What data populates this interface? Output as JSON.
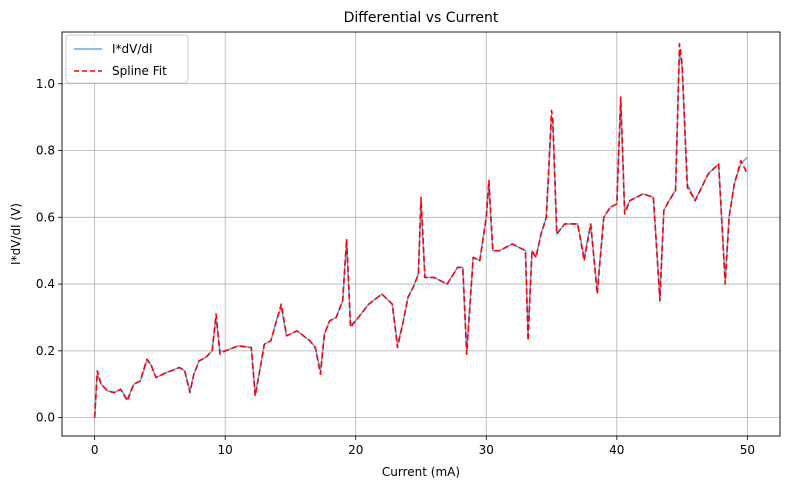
{
  "chart_data": {
    "type": "line",
    "title": "Differential vs Current",
    "xlabel": "Current (mA)",
    "ylabel": "I*dV/dI (V)",
    "xlim": [
      -2.5,
      52.5
    ],
    "ylim": [
      -0.055,
      1.155
    ],
    "xticks": [
      0,
      10,
      20,
      30,
      40,
      50
    ],
    "yticks": [
      0.0,
      0.2,
      0.4,
      0.6,
      0.8,
      1.0
    ],
    "xtick_labels": [
      "0",
      "10",
      "20",
      "30",
      "40",
      "50"
    ],
    "ytick_labels": [
      "0.0",
      "0.2",
      "0.4",
      "0.6",
      "0.8",
      "1.0"
    ],
    "grid": true,
    "legend_position": "top-left",
    "series": [
      {
        "name": "I*dV/dI",
        "color": "#6fa8dc",
        "style": "solid",
        "x": [
          0,
          0.2,
          0.5,
          1.0,
          1.5,
          2.0,
          2.5,
          3.0,
          3.5,
          4.0,
          4.3,
          4.7,
          5.5,
          6.5,
          6.9,
          7.3,
          7.6,
          8.0,
          8.5,
          9.0,
          9.3,
          9.6,
          10.0,
          11.0,
          12.0,
          12.3,
          12.6,
          13.0,
          13.5,
          14.0,
          14.3,
          14.7,
          15.5,
          16.5,
          16.9,
          17.3,
          17.6,
          18.0,
          18.5,
          19.0,
          19.3,
          19.6,
          20.0,
          21.0,
          22.0,
          22.8,
          23.2,
          23.6,
          24.0,
          24.4,
          24.8,
          25.0,
          25.3,
          26.0,
          27.0,
          27.8,
          28.2,
          28.5,
          29.0,
          29.5,
          30.0,
          30.2,
          30.5,
          31.0,
          32.0,
          33.0,
          33.2,
          33.5,
          33.8,
          34.2,
          34.6,
          35.0,
          35.1,
          35.4,
          36.0,
          37.0,
          37.5,
          38.0,
          38.5,
          39.0,
          39.5,
          40.0,
          40.3,
          40.6,
          41.0,
          42.0,
          42.8,
          43.3,
          43.6,
          44.0,
          44.5,
          44.8,
          45.0,
          45.4,
          46.0,
          47.0,
          47.8,
          48.3,
          48.6,
          49.0,
          49.5,
          50.0
        ],
        "y": [
          0.0,
          0.13,
          0.1,
          0.08,
          0.075,
          0.085,
          0.055,
          0.1,
          0.11,
          0.17,
          0.16,
          0.12,
          0.135,
          0.15,
          0.14,
          0.08,
          0.13,
          0.17,
          0.18,
          0.2,
          0.3,
          0.2,
          0.2,
          0.215,
          0.21,
          0.07,
          0.13,
          0.22,
          0.23,
          0.3,
          0.33,
          0.245,
          0.26,
          0.23,
          0.21,
          0.14,
          0.25,
          0.29,
          0.3,
          0.35,
          0.53,
          0.28,
          0.29,
          0.34,
          0.37,
          0.34,
          0.22,
          0.28,
          0.36,
          0.39,
          0.43,
          0.65,
          0.42,
          0.42,
          0.4,
          0.45,
          0.45,
          0.2,
          0.48,
          0.47,
          0.6,
          0.7,
          0.5,
          0.5,
          0.52,
          0.5,
          0.25,
          0.5,
          0.48,
          0.55,
          0.6,
          0.9,
          0.88,
          0.55,
          0.58,
          0.58,
          0.48,
          0.58,
          0.38,
          0.6,
          0.63,
          0.64,
          0.95,
          0.62,
          0.65,
          0.67,
          0.66,
          0.36,
          0.62,
          0.65,
          0.68,
          1.1,
          1.05,
          0.7,
          0.65,
          0.73,
          0.76,
          0.41,
          0.6,
          0.7,
          0.76,
          0.78
        ]
      },
      {
        "name": "Spline Fit",
        "color": "#ff0000",
        "style": "dashed",
        "x": [
          0,
          0.2,
          0.5,
          1.0,
          1.5,
          2.0,
          2.5,
          3.0,
          3.5,
          4.0,
          4.3,
          4.7,
          5.5,
          6.5,
          6.9,
          7.3,
          7.6,
          8.0,
          8.5,
          9.0,
          9.3,
          9.6,
          10.0,
          11.0,
          12.0,
          12.3,
          12.6,
          13.0,
          13.5,
          14.0,
          14.3,
          14.7,
          15.5,
          16.5,
          16.9,
          17.3,
          17.6,
          18.0,
          18.5,
          19.0,
          19.3,
          19.6,
          20.0,
          21.0,
          22.0,
          22.8,
          23.2,
          23.6,
          24.0,
          24.4,
          24.8,
          25.0,
          25.3,
          26.0,
          27.0,
          27.8,
          28.2,
          28.5,
          29.0,
          29.5,
          30.0,
          30.2,
          30.5,
          31.0,
          32.0,
          33.0,
          33.2,
          33.5,
          33.8,
          34.2,
          34.6,
          35.0,
          35.1,
          35.4,
          36.0,
          37.0,
          37.5,
          38.0,
          38.5,
          39.0,
          39.5,
          40.0,
          40.3,
          40.6,
          41.0,
          42.0,
          42.8,
          43.3,
          43.6,
          44.0,
          44.5,
          44.8,
          45.0,
          45.4,
          46.0,
          47.0,
          47.8,
          48.3,
          48.6,
          49.0,
          49.5,
          50.0
        ],
        "y": [
          0.0,
          0.14,
          0.1,
          0.08,
          0.075,
          0.085,
          0.05,
          0.1,
          0.11,
          0.175,
          0.16,
          0.12,
          0.135,
          0.15,
          0.14,
          0.075,
          0.13,
          0.17,
          0.18,
          0.2,
          0.31,
          0.19,
          0.2,
          0.215,
          0.21,
          0.065,
          0.13,
          0.22,
          0.23,
          0.3,
          0.34,
          0.245,
          0.26,
          0.23,
          0.21,
          0.13,
          0.25,
          0.29,
          0.3,
          0.35,
          0.535,
          0.27,
          0.29,
          0.34,
          0.37,
          0.34,
          0.21,
          0.28,
          0.36,
          0.39,
          0.43,
          0.66,
          0.42,
          0.42,
          0.4,
          0.45,
          0.45,
          0.19,
          0.48,
          0.47,
          0.6,
          0.71,
          0.5,
          0.5,
          0.52,
          0.5,
          0.23,
          0.5,
          0.48,
          0.55,
          0.6,
          0.92,
          0.89,
          0.55,
          0.58,
          0.58,
          0.47,
          0.58,
          0.37,
          0.6,
          0.63,
          0.64,
          0.96,
          0.61,
          0.65,
          0.67,
          0.66,
          0.35,
          0.62,
          0.65,
          0.68,
          1.12,
          1.06,
          0.69,
          0.65,
          0.73,
          0.76,
          0.4,
          0.6,
          0.7,
          0.77,
          0.73
        ]
      }
    ]
  }
}
